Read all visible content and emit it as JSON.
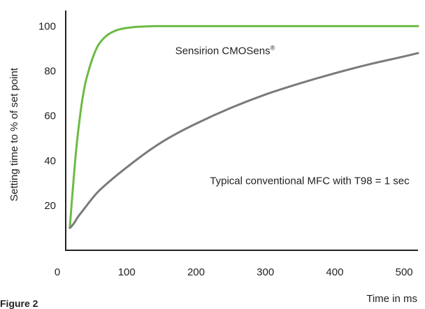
{
  "figure_label": "Figure 2",
  "chart_data": {
    "type": "line",
    "title": "",
    "xlabel": "Time in ms",
    "ylabel": "Setting time to % of set point",
    "xlim": [
      0,
      520
    ],
    "ylim": [
      0,
      107
    ],
    "x_ticks": [
      0,
      100,
      200,
      300,
      400,
      500
    ],
    "y_ticks": [
      20,
      40,
      60,
      80,
      100
    ],
    "grid": false,
    "legend": "none",
    "series": [
      {
        "name": "Sensirion CMOSens",
        "name_suffix": "®",
        "color": "#6cbb45",
        "x": [
          18,
          22,
          26,
          30,
          35,
          40,
          45,
          50,
          55,
          60,
          70,
          80,
          90,
          100,
          110,
          120,
          140,
          160,
          200,
          300,
          400,
          520
        ],
        "y": [
          10,
          26,
          41,
          53,
          65,
          74,
          80,
          85,
          89,
          92,
          95.5,
          97.5,
          98.6,
          99.2,
          99.6,
          99.8,
          100,
          100,
          100,
          100,
          100,
          100
        ]
      },
      {
        "name": "Typical conventional MFC with T98 = 1 sec",
        "color": "#7a7a7a",
        "x": [
          18,
          20,
          25,
          30,
          40,
          50,
          60,
          80,
          100,
          130,
          160,
          200,
          250,
          300,
          350,
          400,
          450,
          500,
          520
        ],
        "y": [
          10,
          10.5,
          12.5,
          15,
          19,
          23,
          26.5,
          32,
          37,
          44,
          50,
          56.5,
          63.5,
          69.5,
          74.5,
          79,
          83,
          86.5,
          88
        ]
      }
    ],
    "annotations": [
      {
        "text": "Sensirion CMOSens",
        "suffix": "®",
        "x": 170,
        "y": 89
      },
      {
        "text": "Typical conventional MFC with T98 = 1 sec",
        "x": 220,
        "y": 31
      }
    ]
  }
}
